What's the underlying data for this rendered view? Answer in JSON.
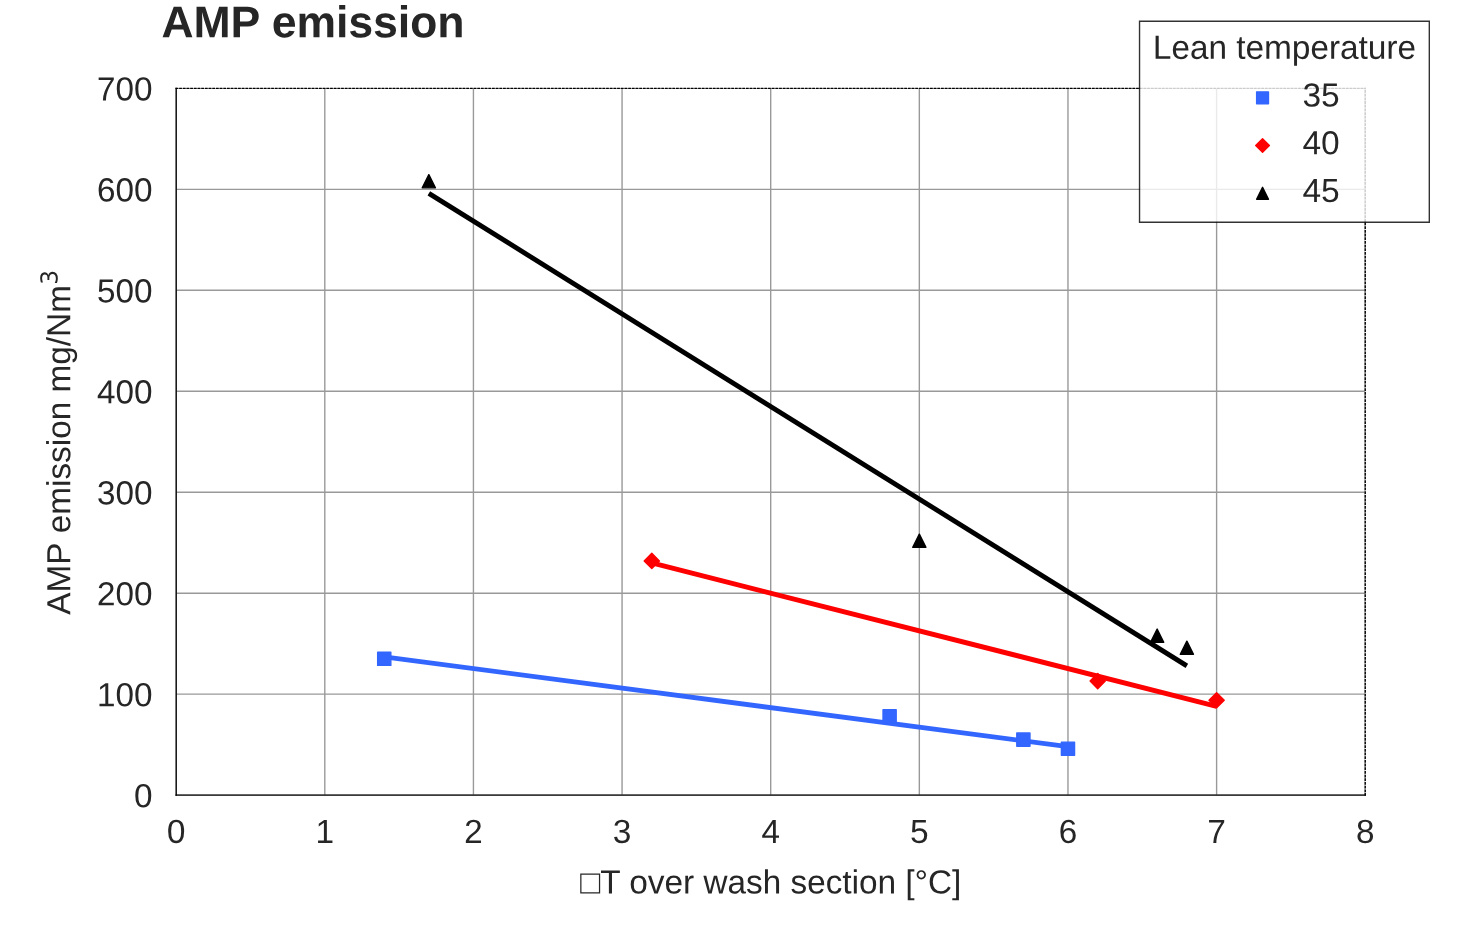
{
  "chart_data": {
    "type": "scatter",
    "title": "AMP emission",
    "xlabel": "□T over wash section [°C]",
    "ylabel": "AMP emission mg/Nm$^{3}$",
    "legend_title": "Lean temperature",
    "legend": "top right",
    "grid": true,
    "xlim": [
      0,
      8
    ],
    "xticks": [
      0,
      1,
      2,
      3,
      4,
      5,
      6,
      7,
      8
    ],
    "ylim": [
      0,
      700
    ],
    "yticks": [
      0,
      100,
      200,
      300,
      400,
      500,
      600,
      700
    ],
    "series": [
      {
        "name": "35",
        "color": "#3366ff",
        "marker": "square",
        "x": [
          1.4,
          4.8,
          5.7,
          6.0
        ],
        "values": [
          135,
          78,
          55,
          46
        ]
      },
      {
        "name": "40",
        "color": "#ff0000",
        "marker": "diamond",
        "x": [
          3.2,
          6.2,
          7.0
        ],
        "values": [
          232,
          113,
          94
        ]
      },
      {
        "name": "45",
        "color": "#000000",
        "marker": "triangle",
        "x": [
          1.7,
          5.0,
          6.6,
          6.8
        ],
        "values": [
          608,
          252,
          158,
          146
        ]
      },
      {
        "type": "line",
        "color": "#3366ff",
        "marker": "none",
        "x": [
          1.4,
          6.0
        ],
        "values": [
          137,
          48
        ]
      },
      {
        "type": "line",
        "color": "#ff0000",
        "marker": "none",
        "x": [
          3.2,
          7.0
        ],
        "values": [
          230,
          88
        ]
      },
      {
        "type": "line",
        "color": "#000000",
        "marker": "none",
        "x": [
          1.7,
          6.8
        ],
        "values": [
          596,
          128
        ]
      }
    ]
  }
}
